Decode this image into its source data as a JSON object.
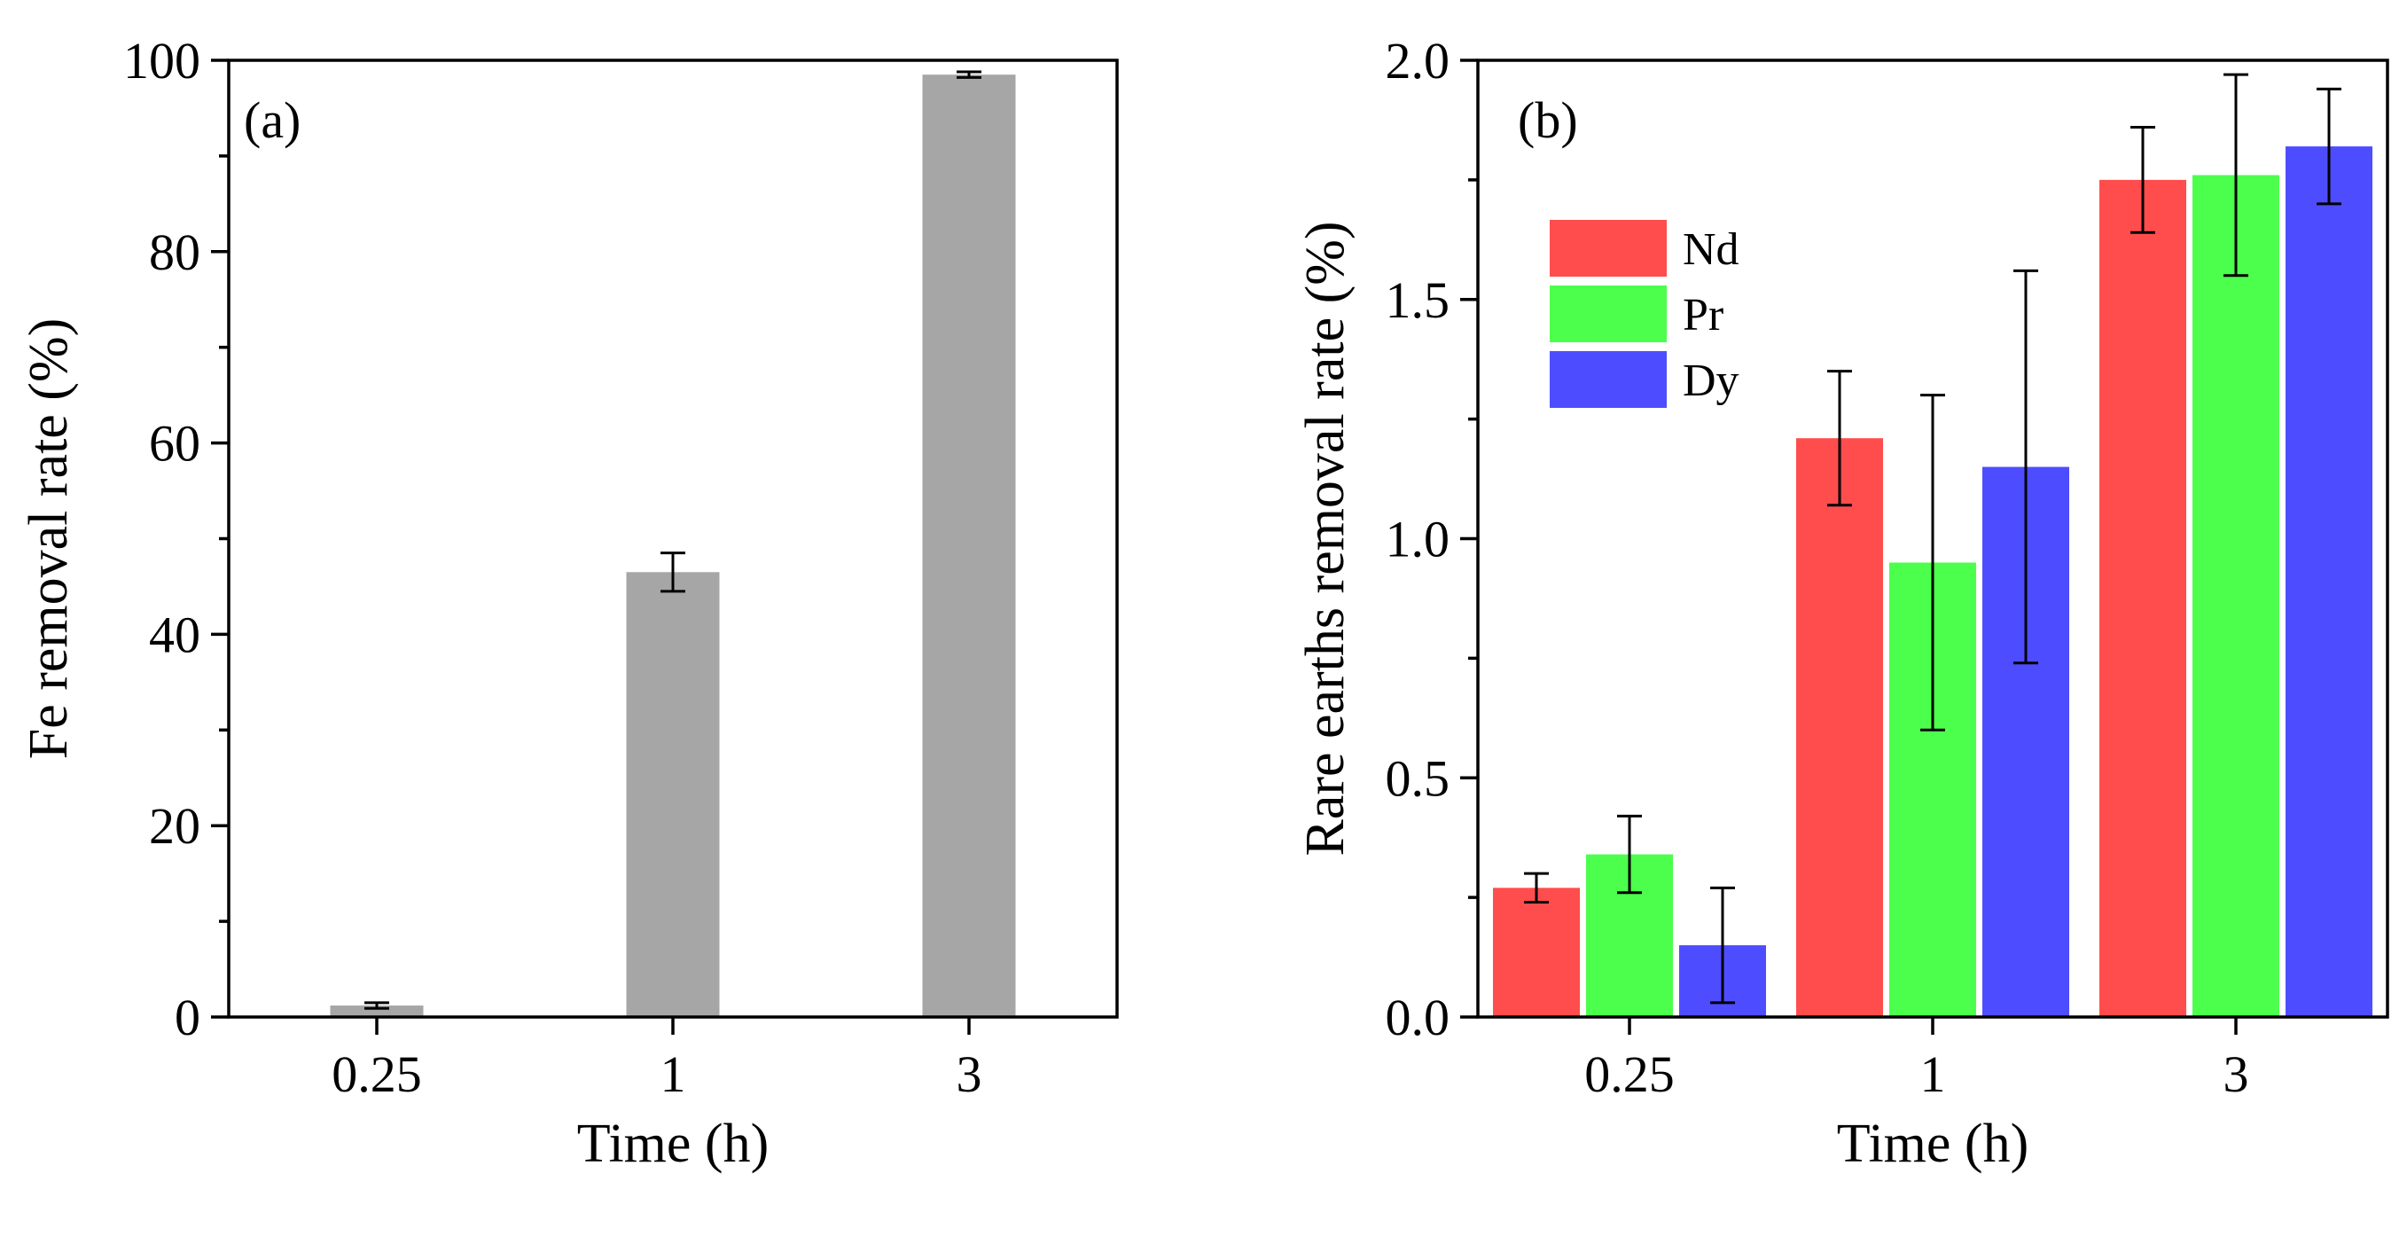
{
  "chart_data": [
    {
      "type": "bar",
      "panel_label": "(a)",
      "title": "",
      "xlabel": "Time (h)",
      "ylabel": "Fe removal rate (%)",
      "categories": [
        "0.25",
        "1",
        "3"
      ],
      "series": [
        {
          "name": "Fe",
          "color": "#a6a6a6",
          "values": [
            1.2,
            46.5,
            98.5
          ],
          "errors": [
            0.3,
            2.0,
            0.3
          ]
        }
      ],
      "ylim": [
        0,
        100
      ],
      "yticks": [
        0,
        20,
        40,
        60,
        80,
        100
      ],
      "ytick_labels": [
        "0",
        "20",
        "40",
        "60",
        "80",
        "100"
      ],
      "grid": false,
      "legend": false
    },
    {
      "type": "bar",
      "panel_label": "(b)",
      "title": "",
      "xlabel": "Time (h)",
      "ylabel": "Rare earths removal rate (%)",
      "categories": [
        "0.25",
        "1",
        "3"
      ],
      "series": [
        {
          "name": "Nd",
          "color": "#ff4d4d",
          "values": [
            0.27,
            1.21,
            1.75
          ],
          "errors": [
            0.03,
            0.14,
            0.11
          ]
        },
        {
          "name": "Pr",
          "color": "#4dff4d",
          "values": [
            0.34,
            0.95,
            1.76
          ],
          "errors": [
            0.08,
            0.35,
            0.21
          ]
        },
        {
          "name": "Dy",
          "color": "#4d4dff",
          "values": [
            0.15,
            1.15,
            1.82
          ],
          "errors": [
            0.12,
            0.41,
            0.12
          ]
        }
      ],
      "ylim": [
        0,
        2.0
      ],
      "yticks": [
        0,
        0.5,
        1.0,
        1.5,
        2.0
      ],
      "ytick_labels": [
        "0.0",
        "0.5",
        "1.0",
        "1.5",
        "2.0"
      ],
      "grid": false,
      "legend": true,
      "legend_position": "top-left"
    }
  ]
}
